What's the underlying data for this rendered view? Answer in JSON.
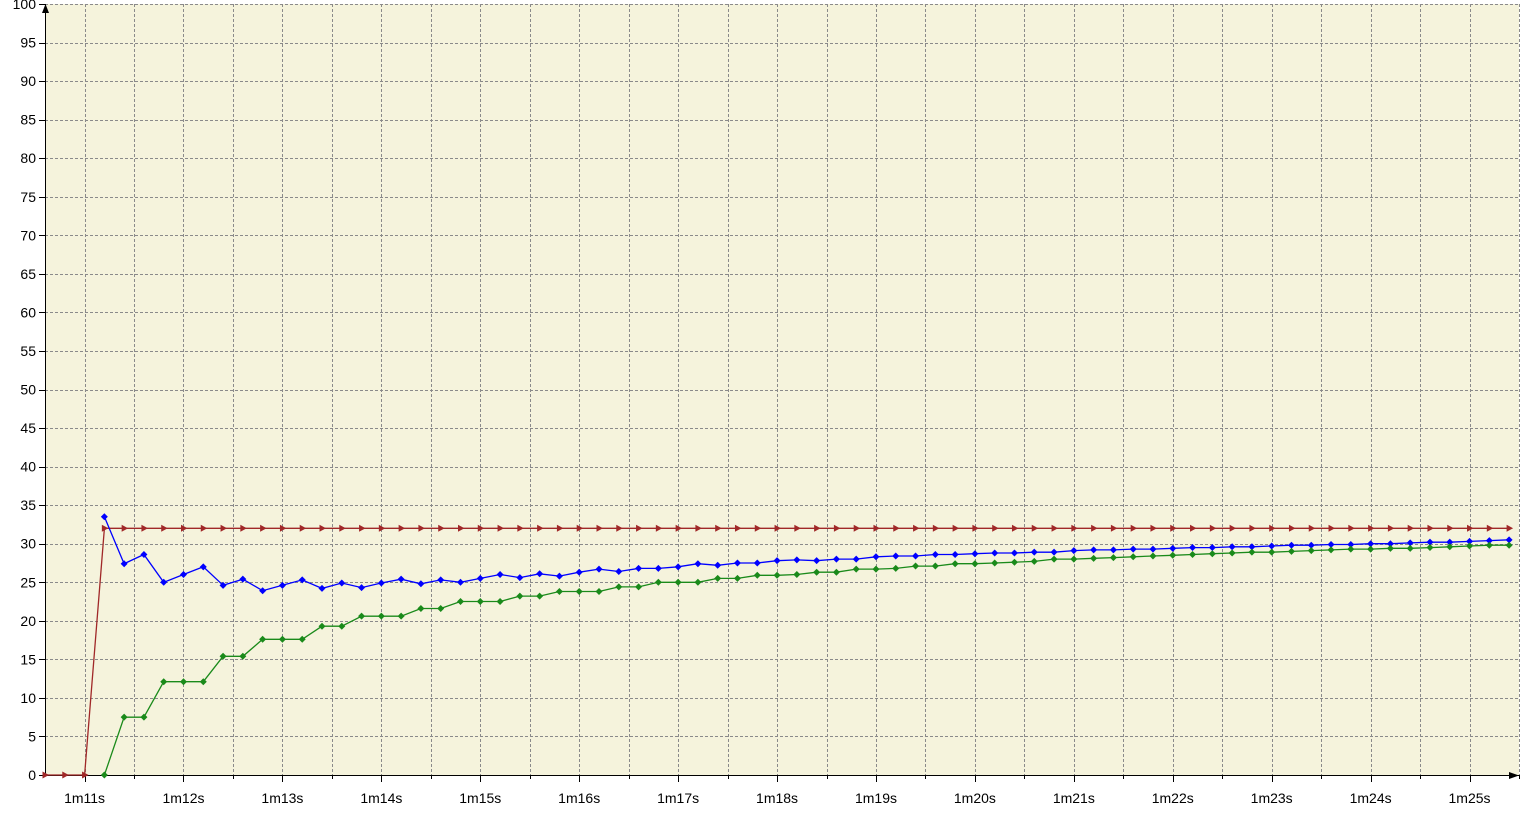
{
  "chart_data": {
    "type": "line",
    "title": "",
    "xlabel": "",
    "ylabel": "",
    "xlim": [
      70.6,
      85.5
    ],
    "ylim": [
      0,
      100
    ],
    "grid": true,
    "legend": "none",
    "background": "#f5f3dc",
    "x_ticks": [
      {
        "value": 71,
        "label": "1m11s"
      },
      {
        "value": 72,
        "label": "1m12s"
      },
      {
        "value": 73,
        "label": "1m13s"
      },
      {
        "value": 74,
        "label": "1m14s"
      },
      {
        "value": 75,
        "label": "1m15s"
      },
      {
        "value": 76,
        "label": "1m16s"
      },
      {
        "value": 77,
        "label": "1m17s"
      },
      {
        "value": 78,
        "label": "1m18s"
      },
      {
        "value": 79,
        "label": "1m19s"
      },
      {
        "value": 80,
        "label": "1m20s"
      },
      {
        "value": 81,
        "label": "1m21s"
      },
      {
        "value": 82,
        "label": "1m22s"
      },
      {
        "value": 83,
        "label": "1m23s"
      },
      {
        "value": 84,
        "label": "1m24s"
      },
      {
        "value": 85,
        "label": "1m25s"
      }
    ],
    "y_ticks": [
      {
        "value": 0,
        "label": "0"
      },
      {
        "value": 5,
        "label": "5"
      },
      {
        "value": 10,
        "label": "10"
      },
      {
        "value": 15,
        "label": "15"
      },
      {
        "value": 20,
        "label": "20"
      },
      {
        "value": 25,
        "label": "25"
      },
      {
        "value": 30,
        "label": "30"
      },
      {
        "value": 35,
        "label": "35"
      },
      {
        "value": 40,
        "label": "40"
      },
      {
        "value": 45,
        "label": "45"
      },
      {
        "value": 50,
        "label": "50"
      },
      {
        "value": 55,
        "label": "55"
      },
      {
        "value": 60,
        "label": "60"
      },
      {
        "value": 65,
        "label": "65"
      },
      {
        "value": 70,
        "label": "70"
      },
      {
        "value": 75,
        "label": "75"
      },
      {
        "value": 80,
        "label": "80"
      },
      {
        "value": 85,
        "label": "85"
      },
      {
        "value": 90,
        "label": "90"
      },
      {
        "value": 95,
        "label": "95"
      },
      {
        "value": 100,
        "label": "100"
      }
    ],
    "x": [
      70.6,
      70.8,
      71.0,
      71.2,
      71.4,
      71.6,
      71.8,
      72.0,
      72.2,
      72.4,
      72.6,
      72.8,
      73.0,
      73.2,
      73.4,
      73.6,
      73.8,
      74.0,
      74.2,
      74.4,
      74.6,
      74.8,
      75.0,
      75.2,
      75.4,
      75.6,
      75.8,
      76.0,
      76.2,
      76.4,
      76.6,
      76.8,
      77.0,
      77.2,
      77.4,
      77.6,
      77.8,
      78.0,
      78.2,
      78.4,
      78.6,
      78.8,
      79.0,
      79.2,
      79.4,
      79.6,
      79.8,
      80.0,
      80.2,
      80.4,
      80.6,
      80.8,
      81.0,
      81.2,
      81.4,
      81.6,
      81.8,
      82.0,
      82.2,
      82.4,
      82.6,
      82.8,
      83.0,
      83.2,
      83.4,
      83.6,
      83.8,
      84.0,
      84.2,
      84.4,
      84.6,
      84.8,
      85.0,
      85.2,
      85.4
    ],
    "series": [
      {
        "color": "#a02828",
        "marker": "triangle-right",
        "values": [
          0,
          0,
          0,
          32,
          32,
          32,
          32,
          32,
          32,
          32,
          32,
          32,
          32,
          32,
          32,
          32,
          32,
          32,
          32,
          32,
          32,
          32,
          32,
          32,
          32,
          32,
          32,
          32,
          32,
          32,
          32,
          32,
          32,
          32,
          32,
          32,
          32,
          32,
          32,
          32,
          32,
          32,
          32,
          32,
          32,
          32,
          32,
          32,
          32,
          32,
          32,
          32,
          32,
          32,
          32,
          32,
          32,
          32,
          32,
          32,
          32,
          32,
          32,
          32,
          32,
          32,
          32,
          32,
          32,
          32,
          32,
          32,
          32,
          32,
          32
        ]
      },
      {
        "color": "#0000ff",
        "marker": "diamond",
        "values": [
          null,
          null,
          null,
          33.5,
          27.4,
          28.6,
          25.0,
          26.0,
          27.0,
          24.6,
          25.4,
          23.9,
          24.6,
          25.3,
          24.2,
          24.9,
          24.3,
          24.9,
          25.4,
          24.8,
          25.3,
          25.0,
          25.5,
          26.0,
          25.6,
          26.1,
          25.8,
          26.3,
          26.7,
          26.4,
          26.8,
          26.8,
          27.0,
          27.4,
          27.2,
          27.5,
          27.5,
          27.8,
          27.9,
          27.8,
          28.0,
          28.0,
          28.3,
          28.4,
          28.4,
          28.6,
          28.6,
          28.7,
          28.8,
          28.8,
          28.9,
          28.9,
          29.1,
          29.2,
          29.2,
          29.3,
          29.3,
          29.4,
          29.5,
          29.5,
          29.6,
          29.6,
          29.7,
          29.8,
          29.8,
          29.9,
          29.9,
          30.0,
          30.0,
          30.1,
          30.2,
          30.2,
          30.3,
          30.4,
          30.5
        ]
      },
      {
        "color": "#1a8a1a",
        "marker": "diamond",
        "values": [
          null,
          null,
          null,
          0,
          7.5,
          7.5,
          12.1,
          12.1,
          12.1,
          15.4,
          15.4,
          17.6,
          17.6,
          17.6,
          19.3,
          19.3,
          20.6,
          20.6,
          20.6,
          21.6,
          21.6,
          22.5,
          22.5,
          22.5,
          23.2,
          23.2,
          23.8,
          23.8,
          23.8,
          24.4,
          24.4,
          25.0,
          25.0,
          25.0,
          25.5,
          25.5,
          25.9,
          25.9,
          26.0,
          26.3,
          26.3,
          26.7,
          26.7,
          26.8,
          27.1,
          27.1,
          27.4,
          27.4,
          27.5,
          27.6,
          27.7,
          28.0,
          28.0,
          28.1,
          28.2,
          28.3,
          28.4,
          28.5,
          28.6,
          28.7,
          28.8,
          28.9,
          28.9,
          29.0,
          29.1,
          29.2,
          29.3,
          29.3,
          29.4,
          29.4,
          29.5,
          29.6,
          29.7,
          29.8,
          29.8
        ]
      }
    ]
  }
}
